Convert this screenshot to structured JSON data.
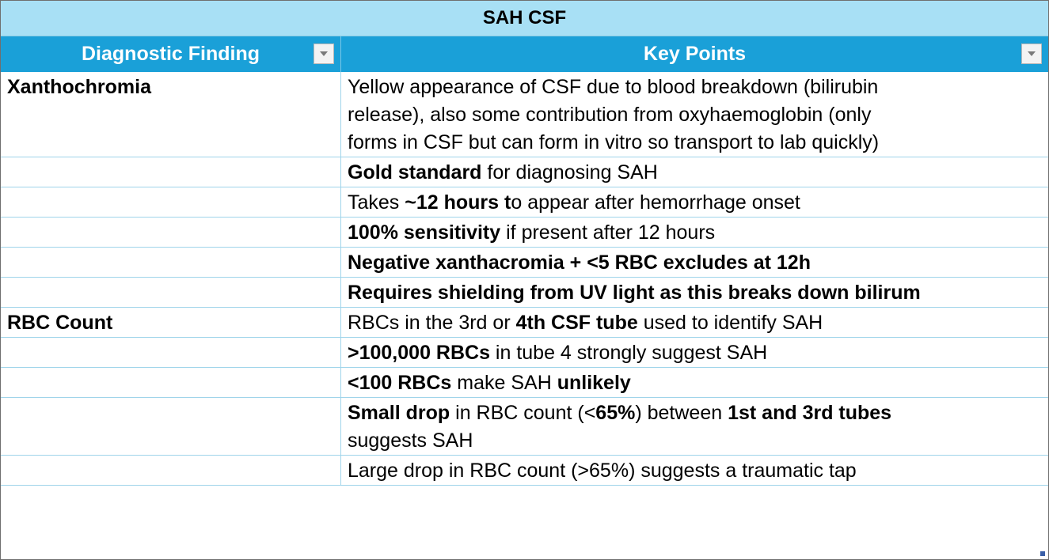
{
  "table": {
    "title": "SAH CSF",
    "headers": [
      "Diagnostic Finding",
      "Key Points"
    ],
    "rows": [
      {
        "finding": "Xanthochromia",
        "lines": [
          [
            {
              "t": "Yellow appearance of CSF due to blood breakdown (bilirubin",
              "b": false
            }
          ],
          [
            {
              "t": "release), also some contribution from oxyhaemoglobin (only",
              "b": false
            }
          ],
          [
            {
              "t": "forms in CSF but can form in vitro so transport to lab quickly)",
              "b": false
            }
          ]
        ]
      },
      {
        "finding": "",
        "lines": [
          [
            {
              "t": "Gold standard",
              "b": true
            },
            {
              "t": " for diagnosing SAH",
              "b": false
            }
          ]
        ]
      },
      {
        "finding": "",
        "lines": [
          [
            {
              "t": "Takes ",
              "b": false
            },
            {
              "t": "~12 hours t",
              "b": true
            },
            {
              "t": "o appear after hemorrhage onset",
              "b": false
            }
          ]
        ]
      },
      {
        "finding": "",
        "lines": [
          [
            {
              "t": "100% sensitivity",
              "b": true
            },
            {
              "t": " if present after 12 hours",
              "b": false
            }
          ]
        ]
      },
      {
        "finding": "",
        "lines": [
          [
            {
              "t": "Negative xanthacromia + <5 RBC excludes at 12h",
              "b": true
            }
          ]
        ]
      },
      {
        "finding": "",
        "lines": [
          [
            {
              "t": "Requires shielding from UV light as this breaks down bilirum",
              "b": true
            }
          ]
        ]
      },
      {
        "finding": "RBC Count",
        "lines": [
          [
            {
              "t": "RBCs in the 3rd or ",
              "b": false
            },
            {
              "t": "4th CSF tube",
              "b": true
            },
            {
              "t": " used to identify SAH",
              "b": false
            }
          ]
        ]
      },
      {
        "finding": "",
        "lines": [
          [
            {
              "t": ">100,000 RBCs",
              "b": true
            },
            {
              "t": " in tube 4 strongly suggest SAH",
              "b": false
            }
          ]
        ]
      },
      {
        "finding": "",
        "lines": [
          [
            {
              "t": "<100 RBCs",
              "b": true
            },
            {
              "t": " make SAH ",
              "b": false
            },
            {
              "t": "unlikely",
              "b": true
            }
          ]
        ]
      },
      {
        "finding": "",
        "lines": [
          [
            {
              "t": "Small drop",
              "b": true
            },
            {
              "t": " in RBC count (<",
              "b": false
            },
            {
              "t": "65%",
              "b": true
            },
            {
              "t": ") between ",
              "b": false
            },
            {
              "t": "1st and 3rd tubes",
              "b": true
            }
          ],
          [
            {
              "t": "suggests SAH",
              "b": false
            }
          ]
        ]
      },
      {
        "finding": "",
        "lines": [
          [
            {
              "t": "Large drop in RBC count (>65%) suggests a traumatic tap",
              "b": false
            }
          ]
        ]
      }
    ]
  }
}
